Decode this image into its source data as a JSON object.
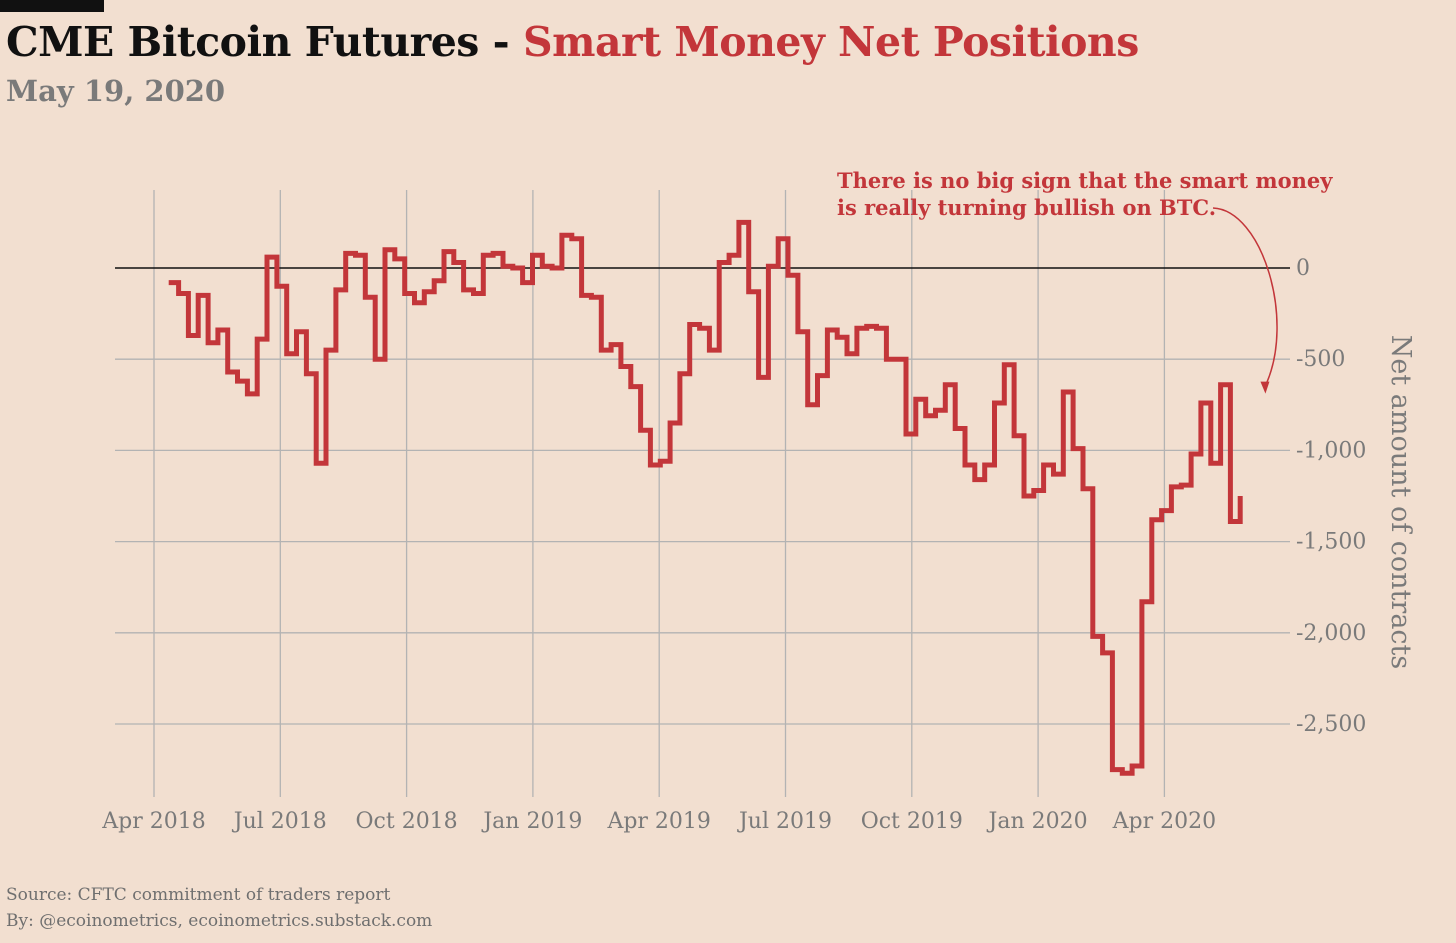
{
  "header": {
    "title_prefix": "CME Bitcoin Futures - ",
    "title_highlight": "Smart Money Net Positions",
    "date": "May 19, 2020"
  },
  "footer": {
    "source": "Source: CFTC commitment of traders report",
    "byline": "By: @ecoinometrics, ecoinometrics.substack.com"
  },
  "colors": {
    "background": "#f2dfd0",
    "series": "#c3363a",
    "grid": "#b3b3b3",
    "zero_line": "#111111",
    "axis_text": "#7a7a7a"
  },
  "chart_data": {
    "type": "line",
    "step": true,
    "title": "CME Bitcoin Futures - Smart Money Net Positions",
    "ylabel": "Net amount of contracts",
    "ylim": [
      -2900,
      420
    ],
    "yticks": [
      0,
      -500,
      -1000,
      -1500,
      -2000,
      -2500
    ],
    "ytick_labels": [
      "0",
      "-500",
      "-1,000",
      "-1,500",
      "-2,000",
      "-2,500"
    ],
    "xlim": [
      -0.3,
      26.7
    ],
    "xticks": [
      0,
      3,
      6,
      9,
      12,
      15,
      18,
      21,
      24
    ],
    "xtick_labels": [
      "Apr 2018",
      "Jul 2018",
      "Oct 2018",
      "Jan 2019",
      "Apr 2019",
      "Jul 2019",
      "Oct 2019",
      "Jan 2020",
      "Apr 2020"
    ],
    "annotation": {
      "lines": [
        "There is no big sign that the smart money",
        "is really turning bullish on BTC."
      ],
      "points_to": {
        "x": 26.4,
        "y": -700
      }
    },
    "series": [
      {
        "name": "Smart money net position",
        "x_unit": "months since Apr 2018",
        "start_x": 0.35,
        "step_x": 0.2335,
        "values": [
          -80,
          -140,
          -370,
          -150,
          -410,
          -340,
          -570,
          -620,
          -690,
          -390,
          60,
          -100,
          -470,
          -350,
          -580,
          -1070,
          -450,
          -120,
          80,
          70,
          -160,
          -500,
          100,
          50,
          -140,
          -190,
          -130,
          -70,
          90,
          30,
          -120,
          -140,
          70,
          80,
          10,
          0,
          -80,
          70,
          10,
          0,
          180,
          160,
          -150,
          -160,
          -450,
          -420,
          -540,
          -650,
          -890,
          -1080,
          -1060,
          -850,
          -580,
          -310,
          -330,
          -450,
          30,
          70,
          250,
          -130,
          -600,
          10,
          160,
          -40,
          -350,
          -750,
          -590,
          -340,
          -380,
          -470,
          -330,
          -320,
          -330,
          -500,
          -500,
          -910,
          -720,
          -810,
          -780,
          -640,
          -880,
          -1080,
          -1160,
          -1080,
          -740,
          -530,
          -920,
          -1250,
          -1220,
          -1080,
          -1130,
          -680,
          -990,
          -1210,
          -2020,
          -2110,
          -2750,
          -2770,
          -2730,
          -1830,
          -1380,
          -1330,
          -1200,
          -1190,
          -1020,
          -740,
          -1070,
          -640,
          -1390,
          -1250
        ]
      }
    ]
  }
}
